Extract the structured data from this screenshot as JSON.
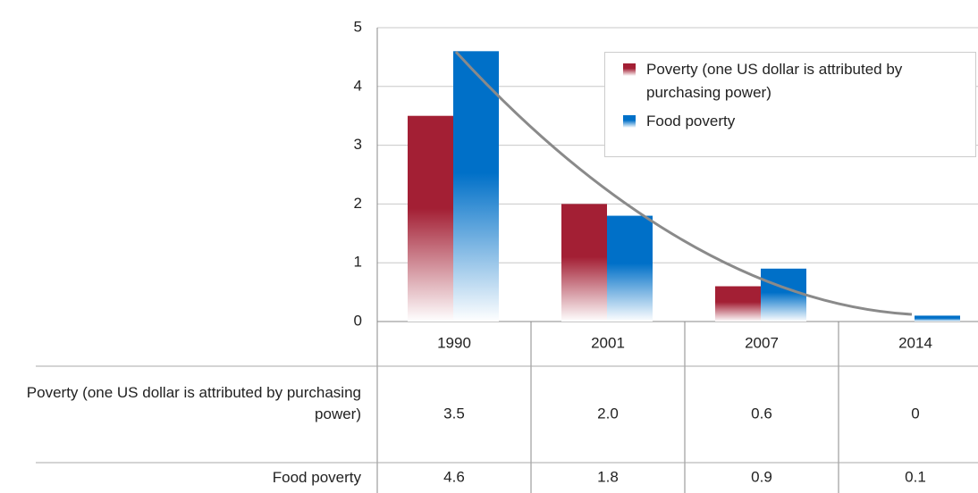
{
  "chart_data": {
    "type": "bar",
    "categories": [
      "1990",
      "2001",
      "2007",
      "2014"
    ],
    "series": [
      {
        "name": "Poverty (one US dollar is attributed by purchasing power)",
        "color": "#a31f34",
        "values": [
          3.5,
          2.0,
          0.6,
          0
        ],
        "value_labels": [
          "3.5",
          "2.0",
          "0.6",
          "0"
        ]
      },
      {
        "name": "Food poverty",
        "color": "#0070c8",
        "values": [
          4.6,
          1.8,
          0.9,
          0.1
        ],
        "value_labels": [
          "4.6",
          "1.8",
          "0.9",
          "0.1"
        ]
      }
    ],
    "ylim": [
      0,
      5
    ],
    "yticks": [
      0,
      1,
      2,
      3,
      4,
      5
    ],
    "grid": true,
    "legend": "top-right"
  }
}
